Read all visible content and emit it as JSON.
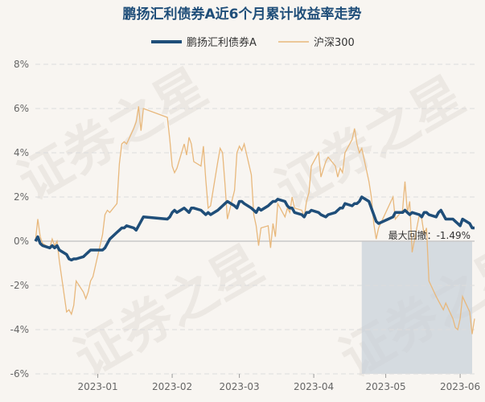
{
  "chart_data": {
    "type": "line",
    "title": "鹏扬汇利债券A近6个月累计收益率走势",
    "legend": {
      "placement": "top",
      "entries": [
        "鹏扬汇利债券A",
        "沪深300"
      ]
    },
    "x_ticks": [
      "2023-01",
      "2023-02",
      "2023-03",
      "2023-04",
      "2023-05",
      "2023-06"
    ],
    "y_ticks": [
      "8%",
      "6%",
      "4%",
      "2%",
      "0%",
      "-2%",
      "-4%",
      "-6%"
    ],
    "ylim": [
      -6,
      8
    ],
    "xlim": [
      "2022-12-06",
      "2023-06-07"
    ],
    "grid": true,
    "series": [
      {
        "name": "鹏扬汇利债券A",
        "color": "#1f4e79",
        "points": [
          [
            "2022-12-06",
            0.0
          ],
          [
            "2022-12-07",
            0.2
          ],
          [
            "2022-12-08",
            -0.1
          ],
          [
            "2022-12-09",
            -0.2
          ],
          [
            "2022-12-12",
            -0.3
          ],
          [
            "2022-12-13",
            -0.2
          ],
          [
            "2022-12-14",
            -0.3
          ],
          [
            "2022-12-15",
            -0.2
          ],
          [
            "2022-12-16",
            -0.4
          ],
          [
            "2022-12-19",
            -0.6
          ],
          [
            "2022-12-20",
            -0.8
          ],
          [
            "2022-12-21",
            -0.85
          ],
          [
            "2022-12-22",
            -0.8
          ],
          [
            "2022-12-23",
            -0.8
          ],
          [
            "2022-12-26",
            -0.7
          ],
          [
            "2022-12-27",
            -0.6
          ],
          [
            "2022-12-28",
            -0.5
          ],
          [
            "2022-12-29",
            -0.4
          ],
          [
            "2022-12-30",
            -0.4
          ],
          [
            "2023-01-03",
            -0.4
          ],
          [
            "2023-01-04",
            -0.3
          ],
          [
            "2023-01-05",
            -0.1
          ],
          [
            "2023-01-06",
            0.1
          ],
          [
            "2023-01-09",
            0.4
          ],
          [
            "2023-01-10",
            0.5
          ],
          [
            "2023-01-11",
            0.6
          ],
          [
            "2023-01-12",
            0.6
          ],
          [
            "2023-01-13",
            0.7
          ],
          [
            "2023-01-16",
            0.6
          ],
          [
            "2023-01-17",
            0.5
          ],
          [
            "2023-01-18",
            0.7
          ],
          [
            "2023-01-19",
            0.9
          ],
          [
            "2023-01-20",
            1.1
          ],
          [
            "2023-01-30",
            1.0
          ],
          [
            "2023-01-31",
            1.1
          ],
          [
            "2023-02-01",
            1.3
          ],
          [
            "2023-02-02",
            1.4
          ],
          [
            "2023-02-03",
            1.3
          ],
          [
            "2023-02-06",
            1.5
          ],
          [
            "2023-02-07",
            1.4
          ],
          [
            "2023-02-08",
            1.3
          ],
          [
            "2023-02-09",
            1.5
          ],
          [
            "2023-02-10",
            1.5
          ],
          [
            "2023-02-13",
            1.4
          ],
          [
            "2023-02-14",
            1.3
          ],
          [
            "2023-02-15",
            1.2
          ],
          [
            "2023-02-16",
            1.3
          ],
          [
            "2023-02-17",
            1.2
          ],
          [
            "2023-02-20",
            1.4
          ],
          [
            "2023-02-21",
            1.5
          ],
          [
            "2023-02-22",
            1.6
          ],
          [
            "2023-02-23",
            1.7
          ],
          [
            "2023-02-24",
            1.8
          ],
          [
            "2023-02-27",
            1.6
          ],
          [
            "2023-02-28",
            1.5
          ],
          [
            "2023-03-01",
            1.8
          ],
          [
            "2023-03-02",
            1.8
          ],
          [
            "2023-03-03",
            1.7
          ],
          [
            "2023-03-06",
            1.5
          ],
          [
            "2023-03-07",
            1.4
          ],
          [
            "2023-03-08",
            1.3
          ],
          [
            "2023-03-09",
            1.5
          ],
          [
            "2023-03-10",
            1.4
          ],
          [
            "2023-03-13",
            1.6
          ],
          [
            "2023-03-14",
            1.7
          ],
          [
            "2023-03-15",
            1.8
          ],
          [
            "2023-03-16",
            1.8
          ],
          [
            "2023-03-17",
            1.9
          ],
          [
            "2023-03-20",
            1.8
          ],
          [
            "2023-03-21",
            1.6
          ],
          [
            "2023-03-22",
            1.5
          ],
          [
            "2023-03-23",
            1.5
          ],
          [
            "2023-03-24",
            1.3
          ],
          [
            "2023-03-27",
            1.2
          ],
          [
            "2023-03-28",
            1.1
          ],
          [
            "2023-03-29",
            1.3
          ],
          [
            "2023-03-30",
            1.3
          ],
          [
            "2023-03-31",
            1.4
          ],
          [
            "2023-04-03",
            1.3
          ],
          [
            "2023-04-04",
            1.2
          ],
          [
            "2023-04-06",
            1.1
          ],
          [
            "2023-04-07",
            1.2
          ],
          [
            "2023-04-10",
            1.3
          ],
          [
            "2023-04-11",
            1.4
          ],
          [
            "2023-04-12",
            1.5
          ],
          [
            "2023-04-13",
            1.5
          ],
          [
            "2023-04-14",
            1.7
          ],
          [
            "2023-04-17",
            1.6
          ],
          [
            "2023-04-18",
            1.7
          ],
          [
            "2023-04-19",
            1.7
          ],
          [
            "2023-04-20",
            1.8
          ],
          [
            "2023-04-21",
            2.0
          ],
          [
            "2023-04-24",
            1.8
          ],
          [
            "2023-04-25",
            1.5
          ],
          [
            "2023-04-26",
            1.2
          ],
          [
            "2023-04-27",
            0.9
          ],
          [
            "2023-04-28",
            0.8
          ],
          [
            "2023-05-04",
            1.1
          ],
          [
            "2023-05-05",
            1.3
          ],
          [
            "2023-05-08",
            1.3
          ],
          [
            "2023-05-09",
            1.4
          ],
          [
            "2023-05-10",
            1.3
          ],
          [
            "2023-05-11",
            1.2
          ],
          [
            "2023-05-12",
            1.3
          ],
          [
            "2023-05-15",
            1.2
          ],
          [
            "2023-05-16",
            1.1
          ],
          [
            "2023-05-17",
            1.3
          ],
          [
            "2023-05-18",
            1.3
          ],
          [
            "2023-05-19",
            1.2
          ],
          [
            "2023-05-22",
            1.1
          ],
          [
            "2023-05-23",
            1.3
          ],
          [
            "2023-05-24",
            1.4
          ],
          [
            "2023-05-25",
            1.2
          ],
          [
            "2023-05-26",
            1.0
          ],
          [
            "2023-05-29",
            1.0
          ],
          [
            "2023-05-30",
            0.9
          ],
          [
            "2023-05-31",
            0.8
          ],
          [
            "2023-06-01",
            0.7
          ],
          [
            "2023-06-02",
            1.0
          ],
          [
            "2023-06-05",
            0.8
          ],
          [
            "2023-06-06",
            0.6
          ],
          [
            "2023-06-07",
            0.6
          ]
        ]
      },
      {
        "name": "沪深300",
        "color": "#e8b87c",
        "points": [
          [
            "2022-12-06",
            0.0
          ],
          [
            "2022-12-07",
            1.0
          ],
          [
            "2022-12-08",
            0.2
          ],
          [
            "2022-12-09",
            -0.1
          ],
          [
            "2022-12-12",
            -0.3
          ],
          [
            "2022-12-13",
            0.1
          ],
          [
            "2022-12-14",
            -0.2
          ],
          [
            "2022-12-15",
            0.0
          ],
          [
            "2022-12-16",
            -0.9
          ],
          [
            "2022-12-19",
            -3.2
          ],
          [
            "2022-12-20",
            -3.1
          ],
          [
            "2022-12-21",
            -3.3
          ],
          [
            "2022-12-22",
            -2.9
          ],
          [
            "2022-12-23",
            -1.8
          ],
          [
            "2022-12-26",
            -2.3
          ],
          [
            "2022-12-27",
            -2.6
          ],
          [
            "2022-12-28",
            -2.3
          ],
          [
            "2022-12-29",
            -1.8
          ],
          [
            "2022-12-30",
            -1.6
          ],
          [
            "2023-01-03",
            0.3
          ],
          [
            "2023-01-04",
            1.2
          ],
          [
            "2023-01-05",
            1.4
          ],
          [
            "2023-01-06",
            1.3
          ],
          [
            "2023-01-09",
            1.7
          ],
          [
            "2023-01-10",
            3.5
          ],
          [
            "2023-01-11",
            4.4
          ],
          [
            "2023-01-12",
            4.5
          ],
          [
            "2023-01-13",
            4.4
          ],
          [
            "2023-01-16",
            5.1
          ],
          [
            "2023-01-17",
            5.4
          ],
          [
            "2023-01-18",
            6.1
          ],
          [
            "2023-01-19",
            5.0
          ],
          [
            "2023-01-20",
            6.0
          ],
          [
            "2023-01-30",
            5.6
          ],
          [
            "2023-01-31",
            4.6
          ],
          [
            "2023-02-01",
            3.4
          ],
          [
            "2023-02-02",
            3.1
          ],
          [
            "2023-02-03",
            3.3
          ],
          [
            "2023-02-06",
            4.4
          ],
          [
            "2023-02-07",
            3.9
          ],
          [
            "2023-02-08",
            4.7
          ],
          [
            "2023-02-09",
            4.4
          ],
          [
            "2023-02-10",
            3.6
          ],
          [
            "2023-02-13",
            3.4
          ],
          [
            "2023-02-14",
            4.3
          ],
          [
            "2023-02-15",
            2.8
          ],
          [
            "2023-02-16",
            1.5
          ],
          [
            "2023-02-17",
            1.6
          ],
          [
            "2023-02-20",
            3.6
          ],
          [
            "2023-02-21",
            4.2
          ],
          [
            "2023-02-22",
            4.0
          ],
          [
            "2023-02-23",
            2.6
          ],
          [
            "2023-02-24",
            1.0
          ],
          [
            "2023-02-27",
            2.3
          ],
          [
            "2023-02-28",
            4.0
          ],
          [
            "2023-03-01",
            4.3
          ],
          [
            "2023-03-02",
            4.1
          ],
          [
            "2023-03-03",
            4.4
          ],
          [
            "2023-03-06",
            3.0
          ],
          [
            "2023-03-07",
            1.2
          ],
          [
            "2023-03-08",
            0.7
          ],
          [
            "2023-03-09",
            -0.2
          ],
          [
            "2023-03-10",
            0.6
          ],
          [
            "2023-03-13",
            0.7
          ],
          [
            "2023-03-14",
            -0.3
          ],
          [
            "2023-03-15",
            0.8
          ],
          [
            "2023-03-16",
            0.2
          ],
          [
            "2023-03-17",
            1.7
          ],
          [
            "2023-03-20",
            1.1
          ],
          [
            "2023-03-21",
            1.5
          ],
          [
            "2023-03-22",
            1.3
          ],
          [
            "2023-03-23",
            2.0
          ],
          [
            "2023-03-24",
            1.5
          ],
          [
            "2023-03-27",
            1.4
          ],
          [
            "2023-03-28",
            1.1
          ],
          [
            "2023-03-29",
            1.8
          ],
          [
            "2023-03-30",
            2.2
          ],
          [
            "2023-03-31",
            3.4
          ],
          [
            "2023-04-03",
            4.0
          ],
          [
            "2023-04-04",
            2.9
          ],
          [
            "2023-04-06",
            3.6
          ],
          [
            "2023-04-07",
            3.8
          ],
          [
            "2023-04-10",
            3.4
          ],
          [
            "2023-04-11",
            2.9
          ],
          [
            "2023-04-12",
            3.3
          ],
          [
            "2023-04-13",
            3.1
          ],
          [
            "2023-04-14",
            4.0
          ],
          [
            "2023-04-17",
            4.6
          ],
          [
            "2023-04-18",
            5.1
          ],
          [
            "2023-04-19",
            4.4
          ],
          [
            "2023-04-20",
            4.0
          ],
          [
            "2023-04-21",
            4.2
          ],
          [
            "2023-04-24",
            2.7
          ],
          [
            "2023-04-25",
            2.0
          ],
          [
            "2023-04-26",
            0.8
          ],
          [
            "2023-04-27",
            0.1
          ],
          [
            "2023-04-28",
            0.6
          ],
          [
            "2023-05-04",
            2.0
          ],
          [
            "2023-05-05",
            1.0
          ],
          [
            "2023-05-08",
            1.4
          ],
          [
            "2023-05-09",
            2.7
          ],
          [
            "2023-05-10",
            1.3
          ],
          [
            "2023-05-11",
            1.8
          ],
          [
            "2023-05-12",
            -0.5
          ],
          [
            "2023-05-15",
            1.2
          ],
          [
            "2023-05-16",
            1.0
          ],
          [
            "2023-05-17",
            0.3
          ],
          [
            "2023-05-18",
            0.6
          ],
          [
            "2023-05-19",
            -1.8
          ],
          [
            "2023-05-22",
            -2.5
          ],
          [
            "2023-05-23",
            -2.7
          ],
          [
            "2023-05-24",
            -2.9
          ],
          [
            "2023-05-25",
            -3.1
          ],
          [
            "2023-05-26",
            -2.8
          ],
          [
            "2023-05-29",
            -3.5
          ],
          [
            "2023-05-30",
            -3.9
          ],
          [
            "2023-05-31",
            -4.0
          ],
          [
            "2023-06-01",
            -3.5
          ],
          [
            "2023-06-02",
            -2.5
          ],
          [
            "2023-06-05",
            -3.2
          ],
          [
            "2023-06-06",
            -4.2
          ],
          [
            "2023-06-07",
            -3.5
          ]
        ]
      }
    ],
    "drawdown": {
      "label": "最大回撤：-1.49%",
      "start": "2023-04-21",
      "end": "2023-06-06",
      "fill": "#c9d2d9"
    },
    "watermark": "证券之星"
  }
}
